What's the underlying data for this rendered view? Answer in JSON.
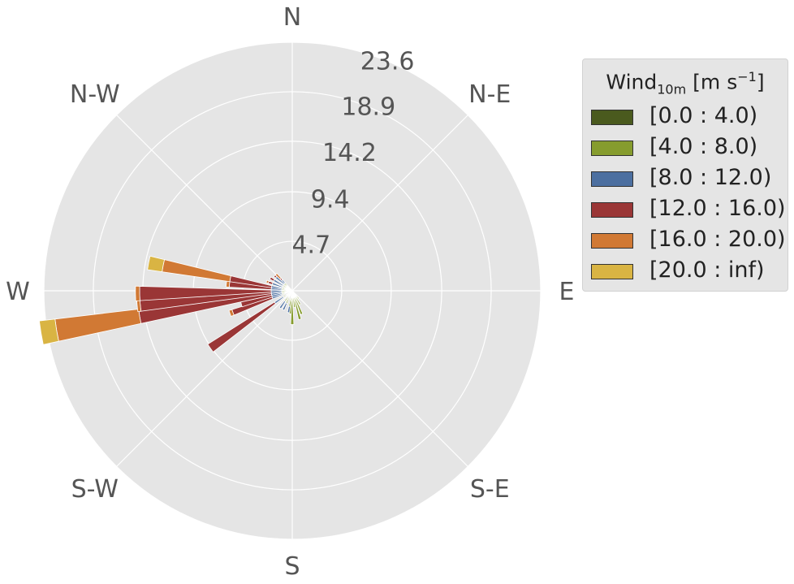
{
  "chart_data": {
    "type": "windrose",
    "directions": [
      "N",
      "N-E",
      "E",
      "S-E",
      "S",
      "S-W",
      "W",
      "N-W"
    ],
    "radial_ticks": [
      "4.7",
      "9.4",
      "14.2",
      "18.9",
      "23.6"
    ],
    "radial_tick_values": [
      4.7,
      9.4,
      14.2,
      18.9,
      23.6
    ],
    "rmax": 23.6,
    "grid": true,
    "legend": {
      "title_main": "Wind",
      "title_sub": "10m",
      "title_unit": "[m s",
      "title_sup": "−1",
      "title_close": "]",
      "placement": "right"
    },
    "bins": [
      {
        "name": "[0.0 : 4.0)",
        "color": "#4a5a1e"
      },
      {
        "name": "[4.0 : 8.0)",
        "color": "#869c2e"
      },
      {
        "name": "[8.0 : 12.0)",
        "color": "#4c6fa0"
      },
      {
        "name": "[12.0 : 16.0)",
        "color": "#9a3636"
      },
      {
        "name": "[16.0 : 20.0)",
        "color": "#d17934"
      },
      {
        "name": "[20.0 : inf)",
        "color": "#d9b443"
      }
    ],
    "sectors": [
      {
        "dir": 185,
        "cum": [
          0.2,
          2.2
        ]
      },
      {
        "dir": 180,
        "cum": [
          0.2,
          3.2
        ]
      },
      {
        "dir": 172,
        "cum": [
          0.2,
          1.6
        ]
      },
      {
        "dir": 165,
        "cum": [
          0.2,
          2.8
        ]
      },
      {
        "dir": 158,
        "cum": [
          0.2,
          2.4
        ]
      },
      {
        "dir": 150,
        "cum": [
          0.2,
          1.5
        ]
      },
      {
        "dir": 140,
        "cum": [
          0.2,
          1.0
        ]
      },
      {
        "dir": 190,
        "cum": [
          0.2,
          1.5,
          2.1
        ]
      },
      {
        "dir": 205,
        "cum": [
          0.2,
          1.3,
          2.0
        ]
      },
      {
        "dir": 215,
        "cum": [
          0.2,
          1.2,
          2.0
        ]
      },
      {
        "dir": 235,
        "cum": [
          0.2,
          1.0,
          2.0,
          9.5
        ]
      },
      {
        "dir": 250,
        "cum": [
          0.2,
          1.0,
          2.0,
          6.0,
          6.3
        ]
      },
      {
        "dir": 255,
        "cum": [
          0.2,
          1.0,
          2.0,
          5.0
        ]
      },
      {
        "dir": 260.5,
        "cum": [
          0.2,
          1.0,
          2.0,
          14.7,
          22.7,
          24.2
        ]
      },
      {
        "dir": 265,
        "cum": [
          0.2,
          1.0,
          2.0,
          14.5,
          14.8
        ]
      },
      {
        "dir": 269,
        "cum": [
          0.2,
          1.0,
          2.0,
          14.5,
          14.9
        ]
      },
      {
        "dir": 276,
        "cum": [
          0.2,
          1.0,
          2.0,
          6.0,
          6.3
        ]
      },
      {
        "dir": 281,
        "cum": [
          0.2,
          1.0,
          2.0,
          6.0,
          12.5,
          13.9
        ]
      },
      {
        "dir": 290,
        "cum": [
          0.2,
          1.0,
          2.0,
          2.4,
          2.6
        ]
      },
      {
        "dir": 300,
        "cum": [
          0.2,
          1.0,
          2.0,
          2.4
        ]
      },
      {
        "dir": 310,
        "cum": [
          0.2,
          1.0,
          2.0,
          2.2
        ]
      },
      {
        "dir": 316,
        "cum": [
          0.2,
          1.0,
          1.4,
          1.6,
          2.2
        ]
      }
    ]
  }
}
